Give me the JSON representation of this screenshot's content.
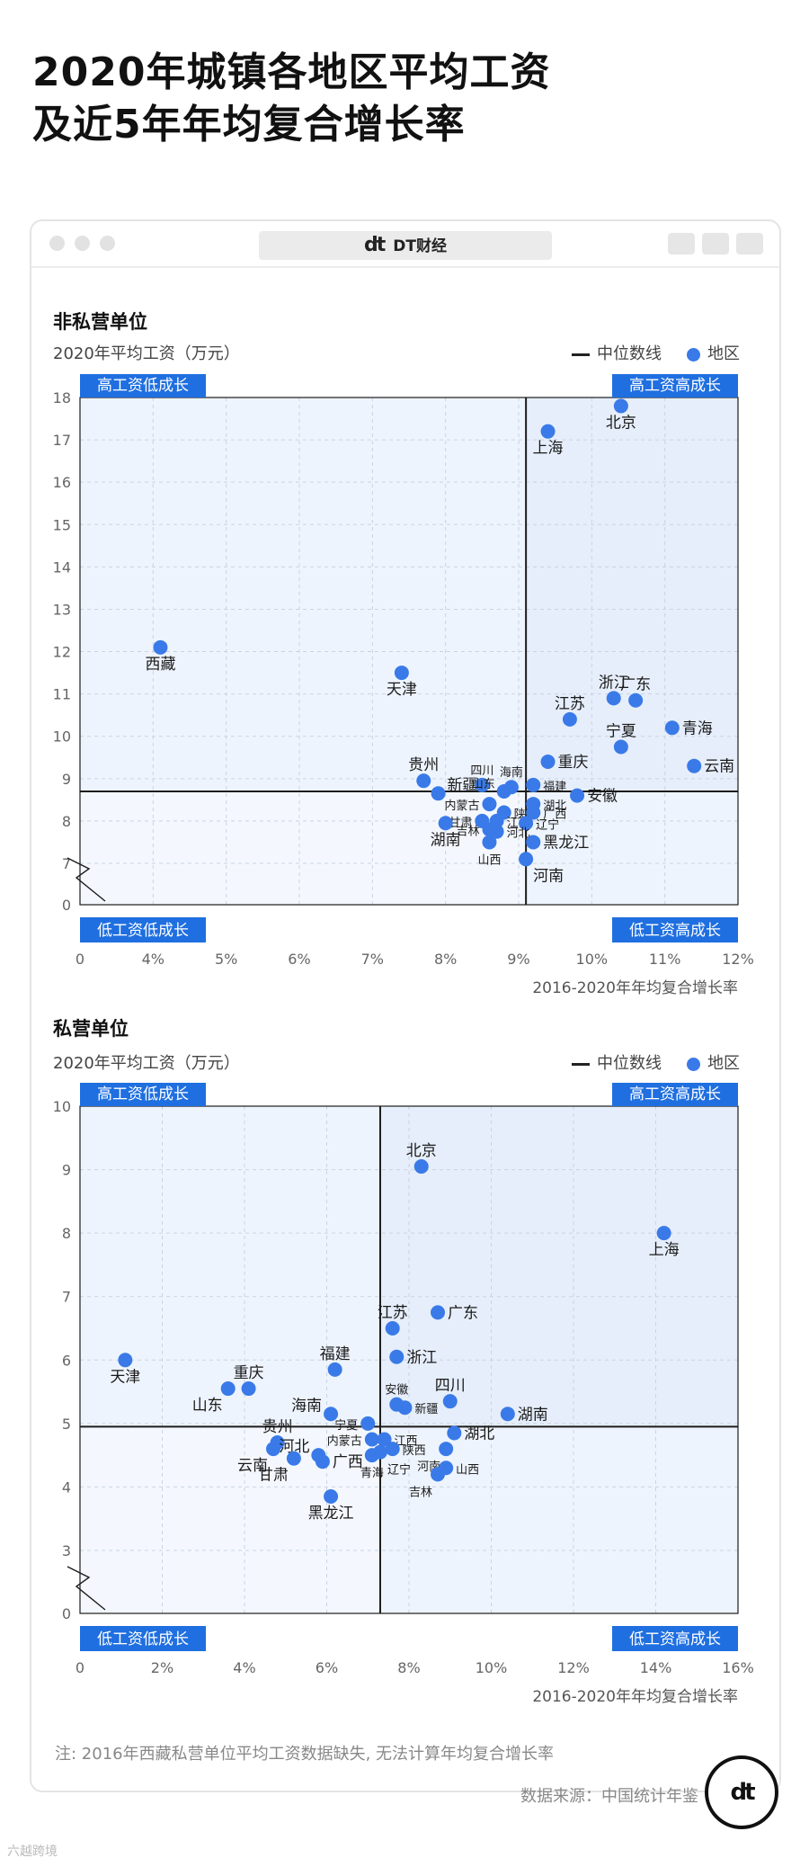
{
  "title": {
    "line1": "2020年城镇各地区平均工资",
    "line2": "及近5年年均复合增长率"
  },
  "window": {
    "brand": "DT财经",
    "brand_logo": "dt"
  },
  "legend": {
    "median": "中位数线",
    "region": "地区"
  },
  "quadrants": {
    "high_low": "高工资低成长",
    "high_high": "高工资高成长",
    "low_low": "低工资低成长",
    "low_high": "低工资高成长"
  },
  "colors": {
    "point": "#3a7ae8",
    "tag": "#1f6fe0",
    "quad_fill": "#eef4fd"
  },
  "chart_data": [
    {
      "type": "scatter",
      "title": "非私营单位",
      "ylabel": "2020年平均工资（万元）",
      "xlabel": "2016-2020年年均复合增长率",
      "x_ticks": [
        "0",
        "4%",
        "5%",
        "6%",
        "7%",
        "8%",
        "9%",
        "10%",
        "11%",
        "12%"
      ],
      "y_ticks": [
        "0",
        "7",
        "8",
        "9",
        "10",
        "11",
        "12",
        "13",
        "14",
        "15",
        "16",
        "17",
        "18"
      ],
      "xlim": [
        3,
        12
      ],
      "ylim": [
        7,
        18
      ],
      "axis_break": true,
      "median": {
        "x": 9.1,
        "y": 8.7
      },
      "points": [
        {
          "name": "北京",
          "x": 10.4,
          "y": 17.8,
          "lab": "below"
        },
        {
          "name": "上海",
          "x": 9.4,
          "y": 17.2,
          "lab": "below"
        },
        {
          "name": "西藏",
          "x": 4.1,
          "y": 12.1,
          "lab": "below"
        },
        {
          "name": "天津",
          "x": 7.4,
          "y": 11.5,
          "lab": "below"
        },
        {
          "name": "浙江",
          "x": 10.3,
          "y": 10.9,
          "lab": "above"
        },
        {
          "name": "广东",
          "x": 10.6,
          "y": 10.85,
          "lab": "above"
        },
        {
          "name": "江苏",
          "x": 9.7,
          "y": 10.4,
          "lab": "above"
        },
        {
          "name": "青海",
          "x": 11.1,
          "y": 10.2,
          "lab": "right"
        },
        {
          "name": "宁夏",
          "x": 10.4,
          "y": 9.75,
          "lab": "above"
        },
        {
          "name": "云南",
          "x": 11.4,
          "y": 9.3,
          "lab": "right"
        },
        {
          "name": "重庆",
          "x": 9.4,
          "y": 9.4,
          "lab": "right"
        },
        {
          "name": "贵州",
          "x": 7.7,
          "y": 8.95,
          "lab": "above"
        },
        {
          "name": "新疆",
          "x": 7.9,
          "y": 8.65,
          "lab": "rightup"
        },
        {
          "name": "四川",
          "x": 8.5,
          "y": 8.85,
          "lab": "above",
          "small": true
        },
        {
          "name": "海南",
          "x": 8.9,
          "y": 8.8,
          "lab": "above",
          "small": true
        },
        {
          "name": "山东",
          "x": 8.8,
          "y": 8.7,
          "lab": "leftup",
          "small": true
        },
        {
          "name": "福建",
          "x": 9.2,
          "y": 8.85,
          "lab": "right",
          "small": true
        },
        {
          "name": "安徽",
          "x": 9.8,
          "y": 8.6,
          "lab": "right"
        },
        {
          "name": "内蒙古",
          "x": 8.6,
          "y": 8.4,
          "lab": "left",
          "small": true
        },
        {
          "name": "湖北",
          "x": 9.2,
          "y": 8.4,
          "lab": "right",
          "small": true
        },
        {
          "name": "陕西",
          "x": 8.8,
          "y": 8.2,
          "lab": "right",
          "small": true
        },
        {
          "name": "广西",
          "x": 9.2,
          "y": 8.2,
          "lab": "right",
          "small": true
        },
        {
          "name": "甘肃",
          "x": 8.5,
          "y": 8.0,
          "lab": "left",
          "small": true
        },
        {
          "name": "江西",
          "x": 8.7,
          "y": 8.0,
          "lab": "right",
          "small": true
        },
        {
          "name": "辽宁",
          "x": 9.1,
          "y": 7.95,
          "lab": "right",
          "small": true
        },
        {
          "name": "湖南",
          "x": 8.0,
          "y": 7.95,
          "lab": "below"
        },
        {
          "name": "吉林",
          "x": 8.6,
          "y": 7.8,
          "lab": "left",
          "small": true
        },
        {
          "name": "河北",
          "x": 8.7,
          "y": 7.75,
          "lab": "right",
          "small": true
        },
        {
          "name": "黑龙江",
          "x": 9.2,
          "y": 7.5,
          "lab": "right"
        },
        {
          "name": "山西",
          "x": 8.6,
          "y": 7.5,
          "lab": "below",
          "small": true
        },
        {
          "name": "河南",
          "x": 9.1,
          "y": 7.1,
          "lab": "belowright"
        }
      ]
    },
    {
      "type": "scatter",
      "title": "私营单位",
      "ylabel": "2020年平均工资（万元）",
      "xlabel": "2016-2020年年均复合增长率",
      "x_ticks": [
        "0",
        "2%",
        "4%",
        "6%",
        "8%",
        "10%",
        "12%",
        "14%",
        "16%"
      ],
      "y_ticks": [
        "0",
        "3",
        "4",
        "5",
        "6",
        "7",
        "8",
        "9",
        "10"
      ],
      "xlim": [
        0,
        16
      ],
      "ylim": [
        3,
        10
      ],
      "axis_break": true,
      "median": {
        "x": 7.3,
        "y": 4.95
      },
      "points": [
        {
          "name": "北京",
          "x": 8.3,
          "y": 9.05,
          "lab": "above"
        },
        {
          "name": "上海",
          "x": 14.2,
          "y": 8.0,
          "lab": "below"
        },
        {
          "name": "广东",
          "x": 8.7,
          "y": 6.75,
          "lab": "right"
        },
        {
          "name": "江苏",
          "x": 7.6,
          "y": 6.5,
          "lab": "above"
        },
        {
          "name": "浙江",
          "x": 7.7,
          "y": 6.05,
          "lab": "right"
        },
        {
          "name": "天津",
          "x": 1.1,
          "y": 6.0,
          "lab": "below"
        },
        {
          "name": "福建",
          "x": 6.2,
          "y": 5.85,
          "lab": "above"
        },
        {
          "name": "山东",
          "x": 3.6,
          "y": 5.55,
          "lab": "belowleft"
        },
        {
          "name": "重庆",
          "x": 4.1,
          "y": 5.55,
          "lab": "above"
        },
        {
          "name": "四川",
          "x": 9.0,
          "y": 5.35,
          "lab": "above"
        },
        {
          "name": "湖南",
          "x": 10.4,
          "y": 5.15,
          "lab": "right"
        },
        {
          "name": "安徽",
          "x": 7.7,
          "y": 5.3,
          "lab": "above",
          "small": true
        },
        {
          "name": "新疆",
          "x": 7.9,
          "y": 5.25,
          "lab": "right",
          "small": true
        },
        {
          "name": "海南",
          "x": 6.1,
          "y": 5.15,
          "lab": "leftup"
        },
        {
          "name": "宁夏",
          "x": 7.0,
          "y": 5.0,
          "lab": "left",
          "small": true
        },
        {
          "name": "贵州",
          "x": 4.8,
          "y": 4.7,
          "lab": "above"
        },
        {
          "name": "内蒙古",
          "x": 7.1,
          "y": 4.75,
          "lab": "left",
          "small": true
        },
        {
          "name": "江西",
          "x": 7.4,
          "y": 4.75,
          "lab": "right",
          "small": true
        },
        {
          "name": "湖北",
          "x": 9.1,
          "y": 4.85,
          "lab": "right"
        },
        {
          "name": "陕西",
          "x": 7.6,
          "y": 4.6,
          "lab": "right",
          "small": true
        },
        {
          "name": "河南",
          "x": 8.9,
          "y": 4.6,
          "lab": "belowleft",
          "small": true
        },
        {
          "name": "云南",
          "x": 4.7,
          "y": 4.6,
          "lab": "belowleft"
        },
        {
          "name": "河北",
          "x": 5.8,
          "y": 4.5,
          "lab": "leftup"
        },
        {
          "name": "广西",
          "x": 5.9,
          "y": 4.4,
          "lab": "right"
        },
        {
          "name": "甘肃",
          "x": 5.2,
          "y": 4.45,
          "lab": "belowleft"
        },
        {
          "name": "青海",
          "x": 7.1,
          "y": 4.5,
          "lab": "below",
          "small": true
        },
        {
          "name": "辽宁",
          "x": 7.3,
          "y": 4.55,
          "lab": "belowright",
          "small": true
        },
        {
          "name": "山西",
          "x": 8.9,
          "y": 4.3,
          "lab": "right",
          "small": true
        },
        {
          "name": "吉林",
          "x": 8.7,
          "y": 4.2,
          "lab": "belowleft",
          "small": true
        },
        {
          "name": "黑龙江",
          "x": 6.1,
          "y": 3.85,
          "lab": "below"
        }
      ]
    }
  ],
  "note": "注: 2016年西藏私营单位平均工资数据缺失, 无法计算年均复合增长率",
  "source": "数据来源：中国统计年鉴",
  "fab_logo": "dt",
  "watermark": "六越跨境"
}
